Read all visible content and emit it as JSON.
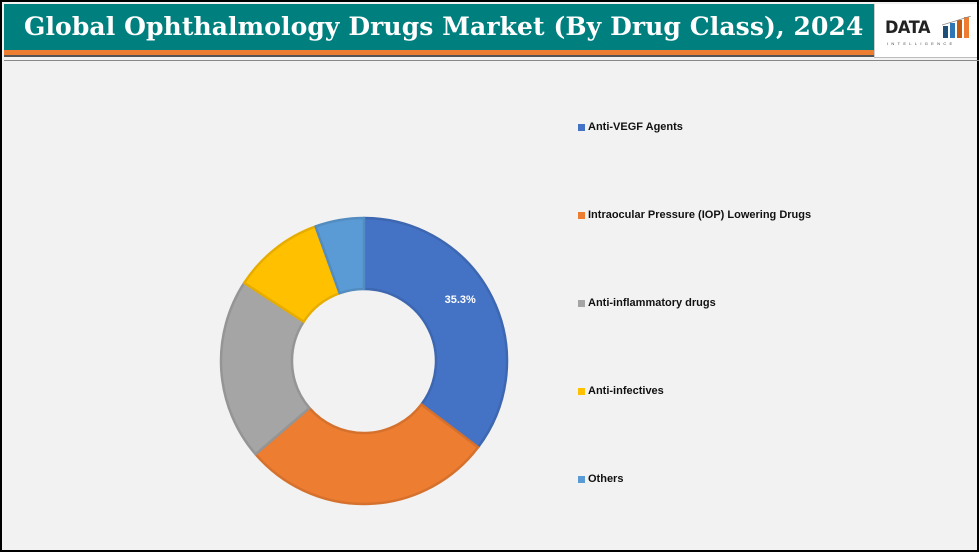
{
  "header": {
    "title": "Global Ophthalmology Drugs Market (By Drug Class), 2024 (%)",
    "logo_text": "DATA",
    "logo_subtext": "INTELLIGENCE"
  },
  "colors": {
    "header_bg": "#007f7f",
    "accent_bar": "#ed7d31",
    "background": "#f2f2f2"
  },
  "chart_data": {
    "type": "pie",
    "subtype": "donut",
    "title": "Global Ophthalmology Drugs Market (By Drug Class), 2024 (%)",
    "categories": [
      "Anti-VEGF Agents",
      "Intraocular Pressure (IOP) Lowering Drugs",
      "Anti-inflammatory drugs",
      "Anti-infectives",
      "Others"
    ],
    "values": [
      35.3,
      28.4,
      20.5,
      10.3,
      5.5
    ],
    "colors": [
      "#4472c4",
      "#ed7d31",
      "#a5a5a5",
      "#ffc000",
      "#5b9bd5"
    ],
    "data_labels": [
      "35.3%",
      "",
      "",
      "",
      ""
    ],
    "legend_position": "right",
    "start_angle": 0,
    "direction": "clockwise"
  },
  "legend": {
    "items": [
      {
        "label": "Anti-VEGF Agents",
        "color": "#4472c4"
      },
      {
        "label": "Intraocular Pressure (IOP) Lowering Drugs",
        "color": "#ed7d31"
      },
      {
        "label": "Anti-inflammatory drugs",
        "color": "#a5a5a5"
      },
      {
        "label": "Anti-infectives",
        "color": "#ffc000"
      },
      {
        "label": "Others",
        "color": "#5b9bd5"
      }
    ]
  }
}
